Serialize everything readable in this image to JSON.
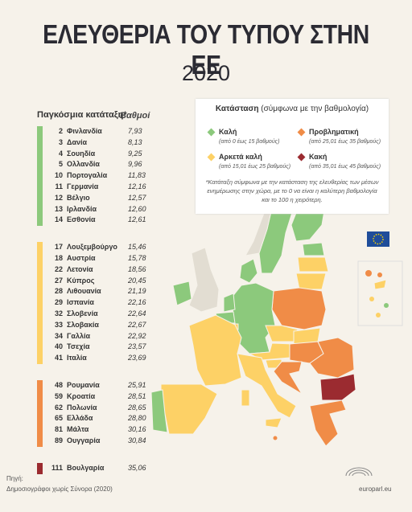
{
  "header": {
    "title": "ΕΛΕΥΘΕΡΙΑ ΤΟΥ ΤΥΠΟΥ ΣΤΗΝ ΕΕ",
    "year": "2020"
  },
  "table": {
    "rank_header": "Παγκόσμια κατάταξη*",
    "score_header": "Βαθμοί",
    "groups": [
      {
        "color": "#8cc97c",
        "rows": [
          {
            "rank": 2,
            "country": "Φινλανδία",
            "score": "7,93"
          },
          {
            "rank": 3,
            "country": "Δανία",
            "score": "8,13"
          },
          {
            "rank": 4,
            "country": "Σουηδία",
            "score": "9,25"
          },
          {
            "rank": 5,
            "country": "Ολλανδία",
            "score": "9,96"
          },
          {
            "rank": 10,
            "country": "Πορτογαλία",
            "score": "11,83"
          },
          {
            "rank": 11,
            "country": "Γερμανία",
            "score": "12,16"
          },
          {
            "rank": 12,
            "country": "Βέλγιο",
            "score": "12,57"
          },
          {
            "rank": 13,
            "country": "Ιρλανδία",
            "score": "12,60"
          },
          {
            "rank": 14,
            "country": "Εσθονία",
            "score": "12,61"
          }
        ]
      },
      {
        "color": "#fdd166",
        "rows": [
          {
            "rank": 17,
            "country": "Λουξεμβούργο",
            "score": "15,46"
          },
          {
            "rank": 18,
            "country": "Αυστρία",
            "score": "15,78"
          },
          {
            "rank": 22,
            "country": "Λετονία",
            "score": "18,56"
          },
          {
            "rank": 27,
            "country": "Κύπρος",
            "score": "20,45"
          },
          {
            "rank": 28,
            "country": "Λιθουανία",
            "score": "21,19"
          },
          {
            "rank": 29,
            "country": "Ισπανία",
            "score": "22,16"
          },
          {
            "rank": 32,
            "country": "Σλοβενία",
            "score": "22,64"
          },
          {
            "rank": 33,
            "country": "Σλοβακία",
            "score": "22,67"
          },
          {
            "rank": 34,
            "country": "Γαλλία",
            "score": "22,92"
          },
          {
            "rank": 40,
            "country": "Τσεχία",
            "score": "23,57"
          },
          {
            "rank": 41,
            "country": "Ιταλία",
            "score": "23,69"
          }
        ]
      },
      {
        "color": "#f08c47",
        "rows": [
          {
            "rank": 48,
            "country": "Ρουμανία",
            "score": "25,91"
          },
          {
            "rank": 59,
            "country": "Κροατία",
            "score": "28,51"
          },
          {
            "rank": 62,
            "country": "Πολωνία",
            "score": "28,65"
          },
          {
            "rank": 65,
            "country": "Ελλάδα",
            "score": "28,80"
          },
          {
            "rank": 81,
            "country": "Μάλτα",
            "score": "30,16"
          },
          {
            "rank": 89,
            "country": "Ουγγαρία",
            "score": "30,84"
          }
        ]
      },
      {
        "color": "#9b2b30",
        "rows": [
          {
            "rank": 111,
            "country": "Βουλγαρία",
            "score": "35,06"
          }
        ]
      }
    ]
  },
  "legend": {
    "title": "Κατάσταση",
    "subtitle": "(σύμφωνα με την βαθμολογία)",
    "items": [
      {
        "label": "Καλή",
        "range": "(από 0 έως 15 βαθμούς)",
        "color": "#8cc97c"
      },
      {
        "label": "Προβληματική",
        "range": "(από 25,01 έως 35 βαθμούς)",
        "color": "#f08c47"
      },
      {
        "label": "Αρκετά καλή",
        "range": "(από 15,01 έως 25 βαθμούς)",
        "color": "#fdd166"
      },
      {
        "label": "Κακή",
        "range": "(από 35,01 έως 45 βαθμούς)",
        "color": "#9b2b30"
      }
    ],
    "note": "*Κατάταξη σύμφωνα με την κατάσταση της ελευθερίας των μέσων ενημέρωσης στην χώρα, με το 0 να είναι η καλύτερη βαθμολογία και το 100 η χειρότερη."
  },
  "footer": {
    "source_label": "Πηγή:",
    "source": "Δημοσιογράφοι χωρίς Σύνορα (2020)",
    "site": "europarl.eu"
  }
}
